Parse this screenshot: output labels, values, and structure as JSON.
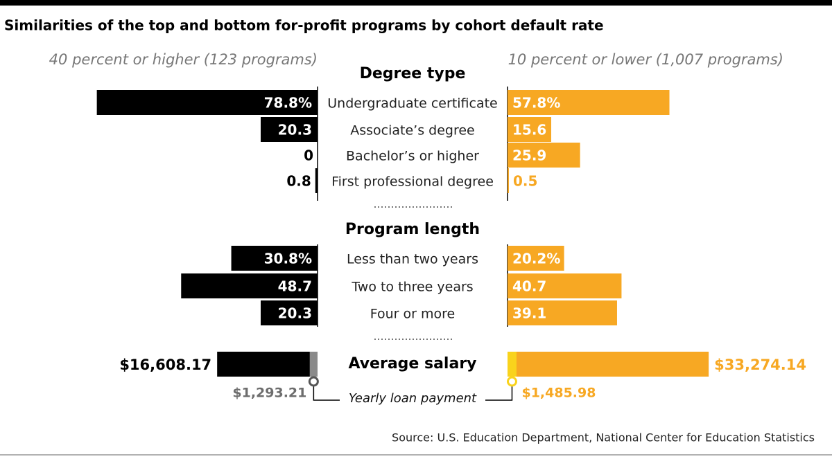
{
  "chart_data": {
    "type": "butterfly",
    "title": "Similarities of the top and bottom for-profit programs by cohort default rate",
    "series": [
      {
        "name": "40 percent or higher (123 programs)",
        "color": "#000000"
      },
      {
        "name": "10 percent or lower (1,007 programs)",
        "color": "#f7a823"
      }
    ],
    "groups": [
      {
        "title": "Degree type",
        "categories": [
          "Undergraduate certificate",
          "Associate’s degree",
          "Bachelor’s or higher",
          "First professional degree"
        ],
        "values": [
          [
            78.8,
            20.3,
            0,
            0.8
          ],
          [
            57.8,
            15.6,
            25.9,
            0.5
          ]
        ],
        "value_labels": [
          [
            "78.8%",
            "20.3",
            "0",
            "0.8"
          ],
          [
            "57.8%",
            "15.6",
            "25.9",
            "0.5"
          ]
        ]
      },
      {
        "title": "Program length",
        "categories": [
          "Less than two years",
          "Two to three years",
          "Four or more"
        ],
        "values": [
          [
            30.8,
            48.7,
            20.3
          ],
          [
            20.2,
            40.7,
            39.1
          ]
        ],
        "value_labels": [
          [
            "30.8%",
            "48.7",
            "20.3"
          ],
          [
            "20.2%",
            "40.7",
            "39.1"
          ]
        ]
      }
    ],
    "salary": {
      "title": "Average salary",
      "values": [
        16608.17,
        33274.14
      ],
      "value_labels": [
        "$16,608.17",
        "$33,274.14"
      ],
      "loan_title": "Yearly loan payment",
      "loan_values": [
        1293.21,
        1485.98
      ],
      "loan_labels": [
        "$1,293.21",
        "$1,485.98"
      ],
      "loan_colors": [
        "#8a8a8a",
        "#f9d31c"
      ],
      "loan_label_colors": [
        "#6d6d6d",
        "#f7a823"
      ]
    },
    "source": "Source: U.S. Education Department, National Center for Education Statistics"
  }
}
